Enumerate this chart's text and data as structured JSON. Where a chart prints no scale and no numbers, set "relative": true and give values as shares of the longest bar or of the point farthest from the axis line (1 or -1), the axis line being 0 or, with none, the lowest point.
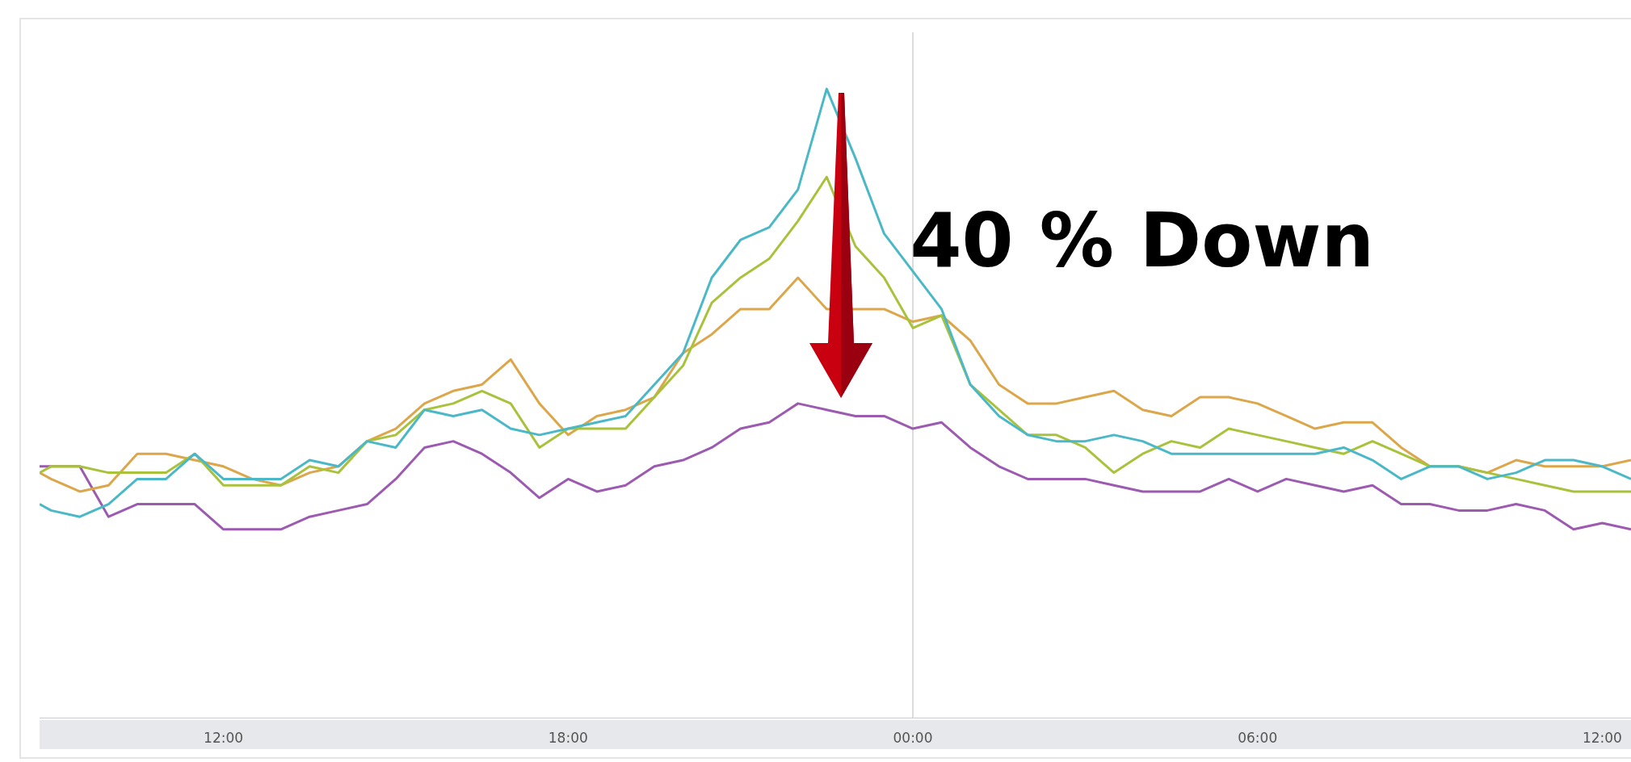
{
  "chart_data": {
    "type": "line",
    "relative": true,
    "legend": false,
    "marker": "none",
    "line_style": "solid",
    "grid": false,
    "x": [
      "2000-01-01T08:48",
      "2000-01-01T09:00",
      "2000-01-01T09:30",
      "2000-01-01T10:00",
      "2000-01-01T10:30",
      "2000-01-01T11:00",
      "2000-01-01T11:30",
      "2000-01-01T12:00",
      "2000-01-01T12:30",
      "2000-01-01T13:00",
      "2000-01-01T13:30",
      "2000-01-01T14:00",
      "2000-01-01T14:30",
      "2000-01-01T15:00",
      "2000-01-01T15:30",
      "2000-01-01T16:00",
      "2000-01-01T16:30",
      "2000-01-01T17:00",
      "2000-01-01T17:30",
      "2000-01-01T18:00",
      "2000-01-01T18:30",
      "2000-01-01T19:00",
      "2000-01-01T19:30",
      "2000-01-01T20:00",
      "2000-01-01T20:30",
      "2000-01-01T21:00",
      "2000-01-01T21:30",
      "2000-01-01T22:00",
      "2000-01-01T22:30",
      "2000-01-01T23:00",
      "2000-01-01T23:30",
      "2000-01-02T00:00",
      "2000-01-02T00:30",
      "2000-01-02T01:00",
      "2000-01-02T01:30",
      "2000-01-02T02:00",
      "2000-01-02T02:30",
      "2000-01-02T03:00",
      "2000-01-02T03:30",
      "2000-01-02T04:00",
      "2000-01-02T04:30",
      "2000-01-02T05:00",
      "2000-01-02T05:30",
      "2000-01-02T06:00",
      "2000-01-02T06:30",
      "2000-01-02T07:00",
      "2000-01-02T07:30",
      "2000-01-02T08:00",
      "2000-01-02T08:30",
      "2000-01-02T09:00",
      "2000-01-02T09:30",
      "2000-01-02T10:00",
      "2000-01-02T10:30",
      "2000-01-02T11:00",
      "2000-01-02T11:30",
      "2000-01-02T12:00",
      "2000-01-02T12:30"
    ],
    "xlim": [
      "2000-01-01T08:48",
      "2000-01-02T12:30"
    ],
    "xticks": [
      {
        "value": "2000-01-01T12:00",
        "label": "12:00"
      },
      {
        "value": "2000-01-01T18:00",
        "label": "18:00"
      },
      {
        "value": "2000-01-02T00:00",
        "label": "00:00"
      },
      {
        "value": "2000-01-02T06:00",
        "label": "06:00"
      },
      {
        "value": "2000-01-02T12:00",
        "label": "12:00"
      }
    ],
    "ref_lines": [
      {
        "axis": "x",
        "value": "2000-01-02T00:00",
        "color": "#d0d0d0"
      }
    ],
    "annotations": [
      "40 % Down"
    ],
    "series": [
      {
        "color": "#4bb8c8",
        "values": [
          0.34,
          0.33,
          0.32,
          0.34,
          0.38,
          0.38,
          0.42,
          0.38,
          0.38,
          0.38,
          0.41,
          0.4,
          0.44,
          0.43,
          0.49,
          0.48,
          0.49,
          0.46,
          0.45,
          0.46,
          0.47,
          0.48,
          0.53,
          0.58,
          0.7,
          0.76,
          0.78,
          0.84,
          1,
          0.89,
          0.77,
          0.71,
          0.65,
          0.53,
          0.48,
          0.45,
          0.44,
          0.44,
          0.45,
          0.44,
          0.42,
          0.42,
          0.42,
          0.42,
          0.42,
          0.42,
          0.43,
          0.41,
          0.38,
          0.4,
          0.4,
          0.38,
          0.39,
          0.41,
          0.41,
          0.4,
          0.38
        ]
      },
      {
        "color": "#a8c23c",
        "values": [
          0.39,
          0.4,
          0.4,
          0.39,
          0.39,
          0.39,
          0.42,
          0.37,
          0.37,
          0.37,
          0.4,
          0.39,
          0.44,
          0.45,
          0.49,
          0.5,
          0.52,
          0.5,
          0.43,
          0.46,
          0.46,
          0.46,
          0.51,
          0.56,
          0.66,
          0.7,
          0.73,
          0.79,
          0.86,
          0.75,
          0.7,
          0.62,
          0.64,
          0.53,
          0.49,
          0.45,
          0.45,
          0.43,
          0.39,
          0.42,
          0.44,
          0.43,
          0.46,
          0.45,
          0.44,
          0.43,
          0.42,
          0.44,
          0.42,
          0.4,
          0.4,
          0.39,
          0.38,
          0.37,
          0.36,
          0.36,
          0.36
        ]
      },
      {
        "color": "#dca64a",
        "values": [
          0.39,
          0.38,
          0.36,
          0.37,
          0.42,
          0.42,
          0.41,
          0.4,
          0.38,
          0.37,
          0.39,
          0.4,
          0.44,
          0.46,
          0.5,
          0.52,
          0.53,
          0.57,
          0.5,
          0.45,
          0.48,
          0.49,
          0.51,
          0.58,
          0.61,
          0.65,
          0.65,
          0.7,
          0.65,
          0.65,
          0.65,
          0.63,
          0.64,
          0.6,
          0.53,
          0.5,
          0.5,
          0.51,
          0.52,
          0.49,
          0.48,
          0.51,
          0.51,
          0.5,
          0.48,
          0.46,
          0.47,
          0.47,
          0.43,
          0.4,
          0.4,
          0.39,
          0.41,
          0.4,
          0.4,
          0.4,
          0.41
        ]
      },
      {
        "color": "#9c5bb0",
        "values": [
          0.4,
          0.4,
          0.4,
          0.32,
          0.34,
          0.34,
          0.34,
          0.3,
          0.3,
          0.3,
          0.32,
          0.33,
          0.34,
          0.38,
          0.43,
          0.44,
          0.42,
          0.39,
          0.35,
          0.38,
          0.36,
          0.37,
          0.4,
          0.41,
          0.43,
          0.46,
          0.47,
          0.5,
          0.49,
          0.48,
          0.48,
          0.46,
          0.47,
          0.43,
          0.4,
          0.38,
          0.38,
          0.38,
          0.37,
          0.36,
          0.36,
          0.36,
          0.38,
          0.36,
          0.38,
          0.37,
          0.36,
          0.37,
          0.34,
          0.34,
          0.33,
          0.33,
          0.34,
          0.33,
          0.3,
          0.31,
          0.3
        ]
      }
    ]
  }
}
